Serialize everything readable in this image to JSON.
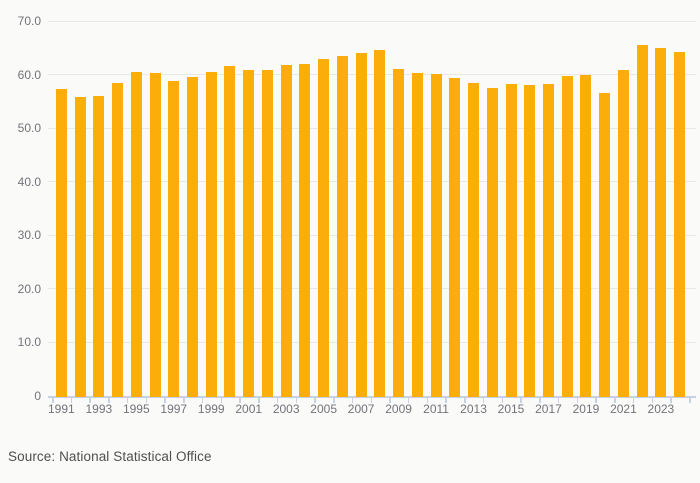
{
  "chart_data": {
    "type": "bar",
    "title": "",
    "xlabel": "",
    "ylabel": "",
    "legend": "none",
    "grid": true,
    "ylim": [
      0,
      70
    ],
    "bar_color": "#FBAE0A",
    "x": [
      1991,
      1992,
      1993,
      1994,
      1995,
      1996,
      1997,
      1998,
      1999,
      2000,
      2001,
      2002,
      2003,
      2004,
      2005,
      2006,
      2007,
      2008,
      2009,
      2010,
      2011,
      2012,
      2013,
      2014,
      2015,
      2016,
      2017,
      2018,
      2019,
      2020,
      2021,
      2022,
      2023,
      2024
    ],
    "values": [
      57.4,
      55.9,
      56.0,
      58.4,
      60.5,
      60.3,
      58.8,
      59.6,
      60.5,
      61.6,
      60.9,
      60.8,
      61.7,
      62.0,
      63.0,
      63.4,
      64.1,
      64.6,
      61.1,
      60.3,
      60.1,
      59.4,
      58.5,
      57.5,
      58.2,
      58.0,
      58.2,
      59.7,
      60.0,
      56.6,
      60.8,
      65.5,
      65.0,
      64.3
    ],
    "yticks": [
      {
        "value": 0,
        "label": "0"
      },
      {
        "value": 10,
        "label": "10.0"
      },
      {
        "value": 20,
        "label": "20.0"
      },
      {
        "value": 30,
        "label": "30.0"
      },
      {
        "value": 40,
        "label": "40.0"
      },
      {
        "value": 50,
        "label": "50.0"
      },
      {
        "value": 60,
        "label": "60.0"
      },
      {
        "value": 70,
        "label": "70.0"
      }
    ],
    "xtick_labels": [
      "1991",
      "1993",
      "1995",
      "1997",
      "1999",
      "2001",
      "2003",
      "2005",
      "2007",
      "2009",
      "2011",
      "2013",
      "2015",
      "2017",
      "2019",
      "2021",
      "2023"
    ]
  },
  "footer": {
    "source_text": "Source: National Statistical Office"
  },
  "colors": {
    "background": "#FAFAF8",
    "bar": "#FBAE0A",
    "gridline": "#E8E8E5",
    "axis": "#C7D1E3",
    "tick_label": "#73737A",
    "source_text": "#4F4F4F"
  }
}
